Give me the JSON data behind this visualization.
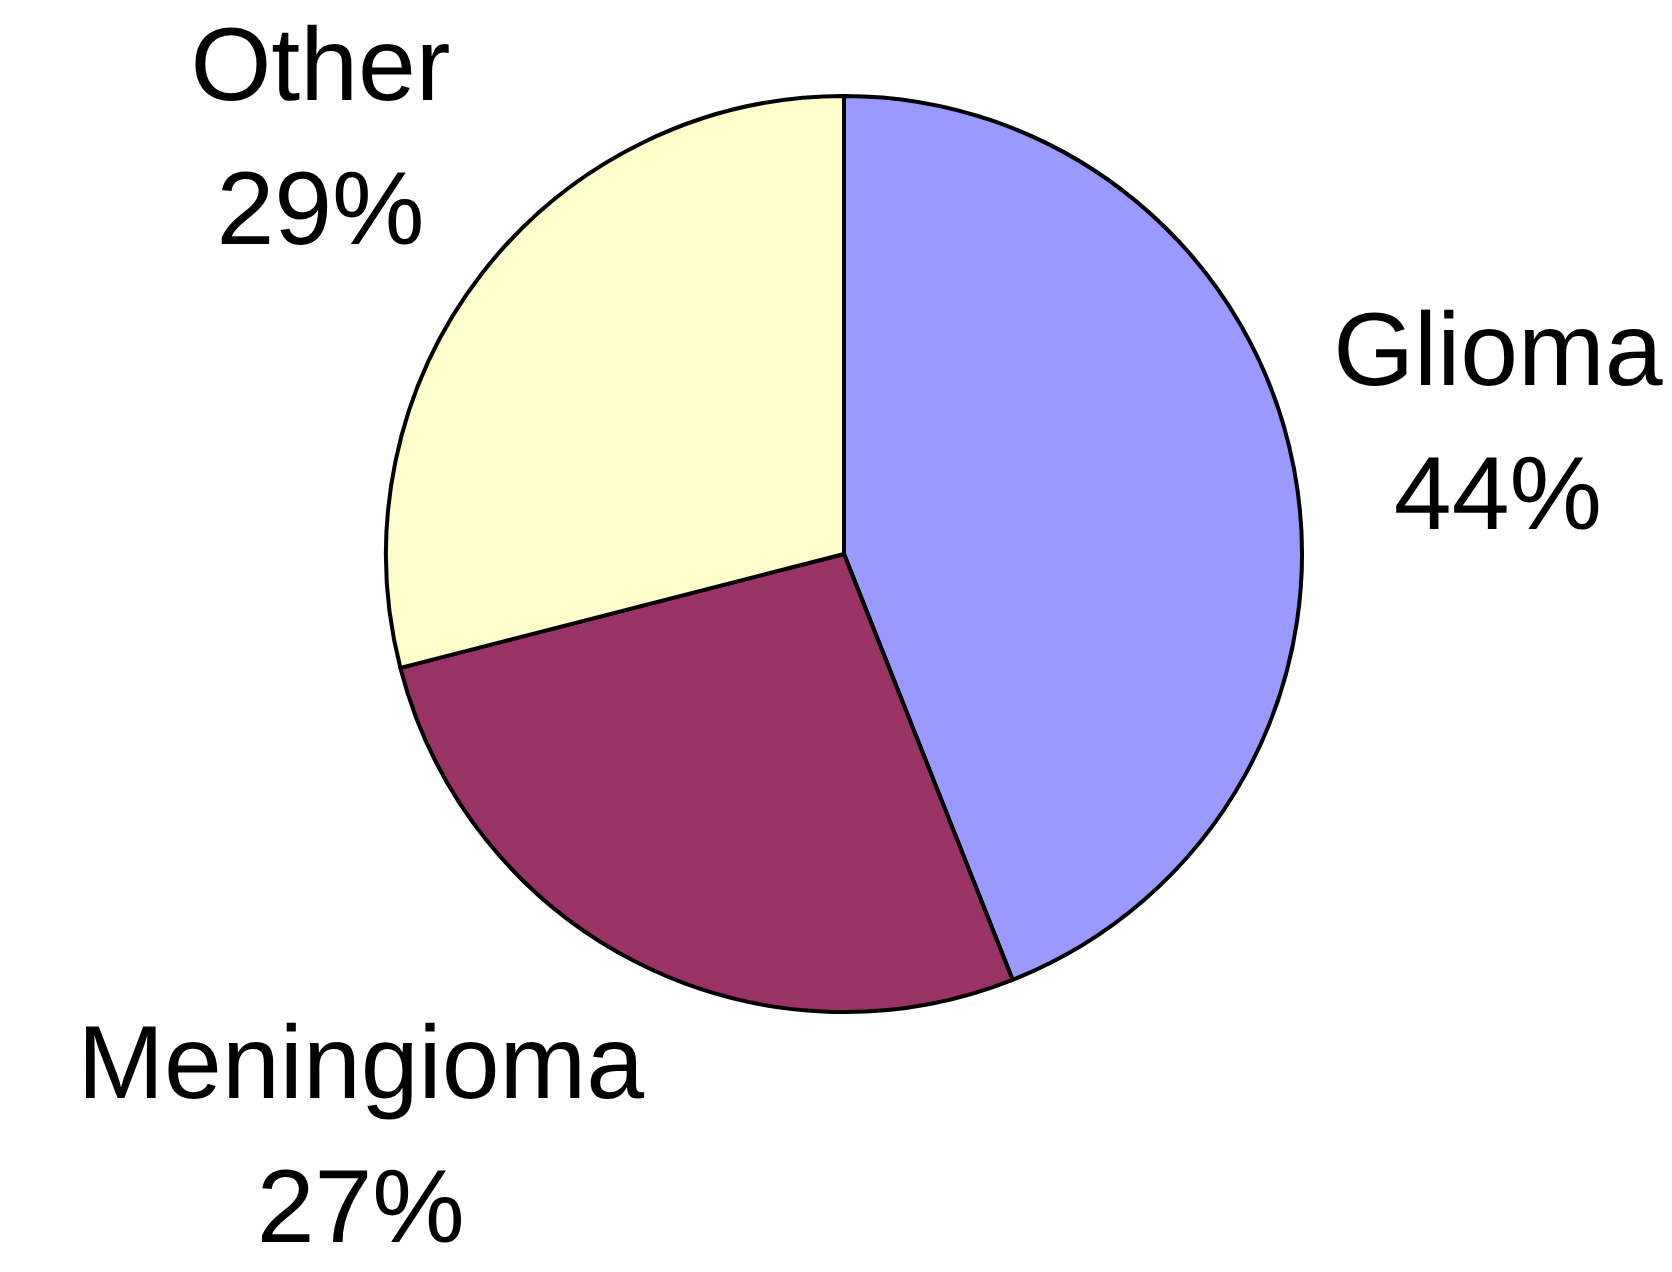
{
  "chart_data": {
    "type": "pie",
    "categories": [
      "Glioma",
      "Meningioma",
      "Other"
    ],
    "values": [
      44,
      27,
      29
    ],
    "value_labels": [
      "44%",
      "27%",
      "29%"
    ],
    "colors": [
      "#9999ff",
      "#993366",
      "#ffffcc"
    ]
  }
}
